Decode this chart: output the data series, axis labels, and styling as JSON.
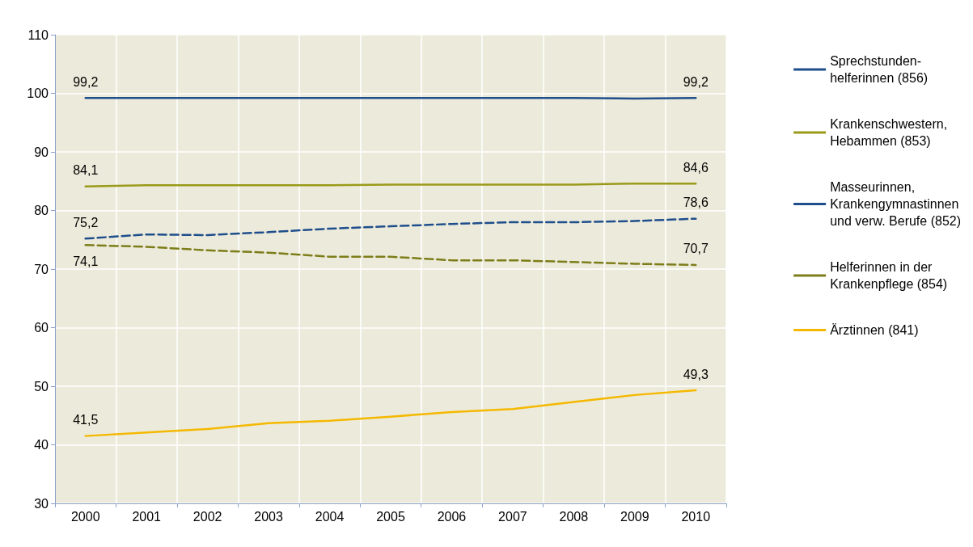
{
  "chart_data": {
    "type": "line",
    "categories": [
      "2000",
      "2001",
      "2002",
      "2003",
      "2004",
      "2005",
      "2006",
      "2007",
      "2008",
      "2009",
      "2010"
    ],
    "ylim": [
      30,
      110
    ],
    "yticks": [
      30,
      40,
      50,
      60,
      70,
      80,
      90,
      100,
      110
    ],
    "grid": true,
    "legend": "right",
    "marker": "none",
    "series": [
      {
        "name": "Sprechstunden-\nhelferinnen (856)",
        "color": "#1f4e8c",
        "line_style": "solid",
        "values": [
          99.2,
          99.2,
          99.2,
          99.2,
          99.2,
          99.2,
          99.2,
          99.2,
          99.2,
          99.1,
          99.2
        ],
        "value_labels": [
          "99,2",
          null,
          null,
          null,
          null,
          null,
          null,
          null,
          null,
          null,
          "99,2"
        ]
      },
      {
        "name": "Krankenschwestern,\nHebammen (853)",
        "color": "#9a9a1a",
        "line_style": "solid",
        "values": [
          84.1,
          84.3,
          84.3,
          84.3,
          84.3,
          84.4,
          84.4,
          84.4,
          84.4,
          84.6,
          84.6
        ],
        "value_labels": [
          "84,1",
          null,
          null,
          null,
          null,
          null,
          null,
          null,
          null,
          null,
          "84,6"
        ]
      },
      {
        "name": "Masseurinnen,\nKrankengymnastinnen\nund verw. Berufe (852)",
        "color": "#1f4e8c",
        "line_style": "dashed",
        "values": [
          75.2,
          75.9,
          75.8,
          76.3,
          76.9,
          77.3,
          77.7,
          78.0,
          78.0,
          78.2,
          78.6
        ],
        "value_labels": [
          "75,2",
          null,
          null,
          null,
          null,
          null,
          null,
          null,
          null,
          null,
          "78,6"
        ]
      },
      {
        "name": "Helferinnen in der\nKrankenpflege (854)",
        "color": "#7d7d1a",
        "line_style": "dashed",
        "values": [
          74.1,
          73.8,
          73.2,
          72.8,
          72.1,
          72.1,
          71.5,
          71.5,
          71.2,
          70.9,
          70.7
        ],
        "value_labels": [
          "74,1",
          null,
          null,
          null,
          null,
          null,
          null,
          null,
          null,
          null,
          "70,7"
        ]
      },
      {
        "name": "Ärztinnen (841)",
        "color": "#f5b800",
        "line_style": "solid",
        "values": [
          41.5,
          42.1,
          42.7,
          43.7,
          44.1,
          44.8,
          45.6,
          46.1,
          47.3,
          48.5,
          49.3
        ],
        "value_labels": [
          "41,5",
          null,
          null,
          null,
          null,
          null,
          null,
          null,
          null,
          null,
          "49,3"
        ]
      }
    ]
  }
}
